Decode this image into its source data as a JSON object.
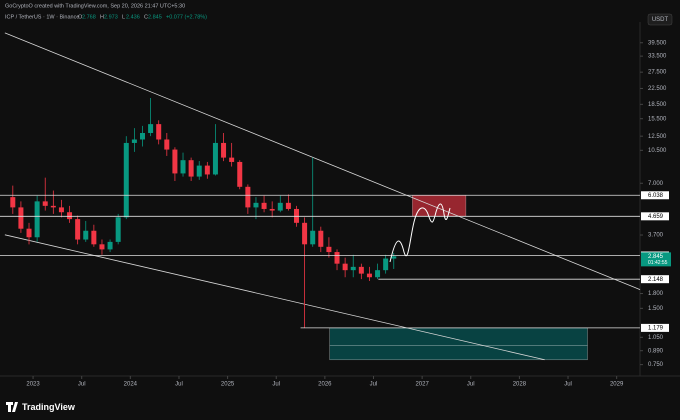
{
  "header": {
    "creator": "GoCryptoO created with TradingView.com, Sep 20, 2026 21:47 UTC+5:30",
    "symbol": "ICP / TetherUS · 1W · Binance",
    "ohlc_keys": [
      "O",
      "H",
      "L",
      "C"
    ],
    "change": "+0.077 (+2.78%)",
    "currency": "USDT",
    "countdown": "01:42:55",
    "brand": "TradingView"
  },
  "chart_data": {
    "type": "candlestick",
    "log_scale": true,
    "up_color": "#089981",
    "down_color": "#f23645",
    "x": [
      "2022-10",
      "2022-11",
      "2022-12",
      "2023-01",
      "2023-02",
      "2023-03",
      "2023-04",
      "2023-05",
      "2023-06",
      "2023-07",
      "2023-08",
      "2023-09",
      "2023-10",
      "2023-11",
      "2023-12",
      "2024-01",
      "2024-02",
      "2024-03",
      "2024-04",
      "2024-05",
      "2024-06",
      "2024-07",
      "2024-08",
      "2024-09",
      "2024-10",
      "2024-11",
      "2024-12",
      "2025-01",
      "2025-02",
      "2025-03",
      "2025-04",
      "2025-05",
      "2025-06",
      "2025-07",
      "2025-08",
      "2025-09",
      "2025-10",
      "2025-11",
      "2025-12",
      "2026-01",
      "2026-02",
      "2026-03",
      "2026-04",
      "2026-05",
      "2026-06",
      "2026-07",
      "2026-08",
      "2026-09"
    ],
    "open": [
      5.9,
      5.2,
      4.0,
      3.6,
      5.6,
      5.3,
      5.2,
      4.9,
      4.5,
      3.5,
      3.9,
      3.3,
      3.1,
      3.4,
      4.6,
      11.5,
      12.0,
      13.0,
      14.5,
      12.0,
      10.6,
      7.9,
      9.3,
      7.6,
      8.7,
      7.8,
      11.5,
      9.6,
      9.1,
      6.7,
      5.2,
      5.5,
      5.1,
      5.0,
      5.5,
      5.1,
      4.3,
      3.3,
      3.9,
      3.2,
      3.0,
      2.6,
      2.4,
      2.5,
      2.3,
      2.2,
      2.4,
      2.768
    ],
    "high": [
      6.8,
      5.6,
      4.3,
      6.0,
      7.5,
      6.4,
      5.7,
      5.3,
      4.7,
      4.4,
      4.2,
      3.5,
      3.5,
      4.8,
      12.5,
      13.8,
      14.2,
      20.0,
      15.2,
      13.0,
      10.9,
      10.2,
      9.6,
      9.2,
      9.1,
      14.5,
      13.0,
      11.5,
      9.3,
      6.9,
      5.9,
      6.0,
      5.6,
      6.0,
      6.1,
      5.3,
      4.6,
      9.6,
      4.1,
      3.6,
      3.1,
      2.8,
      2.9,
      2.6,
      2.5,
      2.6,
      2.9,
      2.973
    ],
    "low": [
      4.8,
      3.8,
      3.3,
      3.4,
      5.0,
      4.8,
      4.6,
      4.3,
      3.3,
      3.4,
      3.2,
      2.9,
      3.0,
      3.3,
      4.5,
      10.3,
      11.0,
      12.5,
      11.3,
      9.8,
      7.2,
      7.6,
      7.2,
      7.3,
      7.4,
      7.7,
      9.2,
      8.6,
      6.5,
      4.8,
      4.5,
      4.9,
      4.6,
      4.9,
      5.0,
      4.1,
      1.18,
      3.2,
      3.0,
      2.8,
      2.4,
      2.2,
      2.2,
      2.15,
      2.1,
      2.15,
      2.3,
      2.436
    ],
    "close": [
      5.2,
      4.0,
      3.6,
      5.6,
      5.3,
      5.2,
      4.9,
      4.5,
      3.5,
      3.9,
      3.3,
      3.1,
      3.4,
      4.6,
      11.5,
      12.0,
      13.0,
      14.5,
      12.0,
      10.6,
      7.9,
      9.3,
      7.6,
      8.7,
      7.8,
      11.5,
      9.6,
      9.1,
      6.7,
      5.2,
      5.5,
      5.1,
      5.0,
      5.5,
      5.1,
      4.3,
      3.3,
      3.9,
      3.2,
      3.0,
      2.6,
      2.4,
      2.5,
      2.3,
      2.2,
      2.4,
      2.77,
      2.845
    ],
    "xlim": [
      2022.66,
      2029.24
    ],
    "xticks": [
      2023,
      {
        "value": 2023.5,
        "label": "Jul"
      },
      2024,
      {
        "value": 2024.5,
        "label": "Jul"
      },
      2025,
      {
        "value": 2025.5,
        "label": "Jul"
      },
      2026,
      {
        "value": 2026.5,
        "label": "Jul"
      },
      2027,
      {
        "value": 2027.5,
        "label": "Jul"
      },
      2028,
      {
        "value": 2028.5,
        "label": "Jul"
      },
      2029
    ],
    "ylim": [
      0.66,
      51
    ],
    "yticks": [
      {
        "value": 39.5,
        "label": "39.500"
      },
      {
        "value": 33.5,
        "label": "33.500"
      },
      {
        "value": 27.5,
        "label": "27.500"
      },
      {
        "value": 22.5,
        "label": "22.500"
      },
      {
        "value": 18.5,
        "label": "18.500"
      },
      {
        "value": 15.5,
        "label": "15.500"
      },
      {
        "value": 12.5,
        "label": "12.500"
      },
      {
        "value": 10.5,
        "label": "10.500"
      },
      {
        "value": 7,
        "label": "7.000"
      },
      {
        "value": 3.7,
        "label": "3.700"
      },
      {
        "value": 1.8,
        "label": "1.800"
      },
      {
        "value": 1.5,
        "label": "1.500"
      },
      {
        "value": 1.05,
        "label": "1.050"
      },
      {
        "value": 0.89,
        "label": "0.890"
      },
      {
        "value": 0.75,
        "label": "0.750"
      }
    ],
    "levels": [
      {
        "value": 6.038,
        "from": 2022.66
      },
      {
        "value": 4.659,
        "from": 2022.66
      },
      {
        "value": 2.875,
        "from": 2022.66
      },
      {
        "value": 2.148,
        "from": 2026.55
      },
      {
        "value": 1.179,
        "from": 2025.75
      }
    ],
    "trendlines": [
      {
        "x": [
          2022.71,
          2029.24
        ],
        "y": [
          44.6,
          1.89
        ]
      },
      {
        "x": [
          2022.71,
          2028.26
        ],
        "y": [
          3.71,
          0.796
        ]
      }
    ],
    "boxes": [
      {
        "x": [
          2026.9,
          2027.45
        ],
        "y": [
          4.659,
          6.038
        ],
        "color": "rgba(242,54,69,0.6)"
      },
      {
        "x": [
          2026.05,
          2028.7
        ],
        "y": [
          0.796,
          1.179
        ],
        "mid": 0.948,
        "color": "rgba(0,128,128,0.45)"
      }
    ]
  }
}
